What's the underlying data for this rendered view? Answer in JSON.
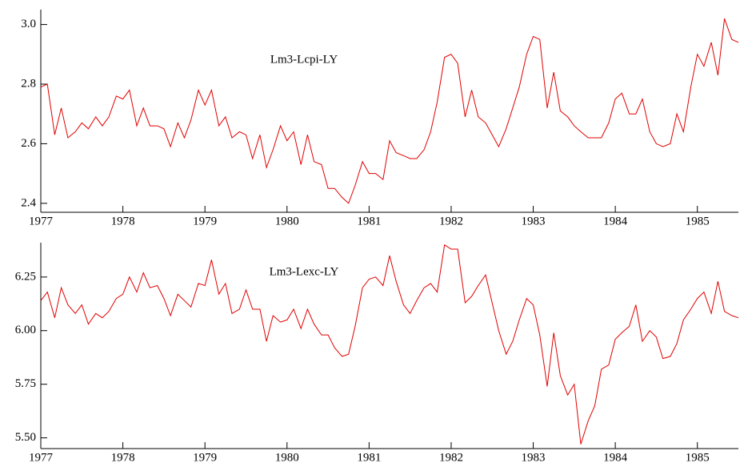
{
  "chart_data": [
    {
      "type": "line",
      "x": [
        1977,
        1977.08,
        1977.17,
        1977.25,
        1977.33,
        1977.42,
        1977.5,
        1977.58,
        1977.67,
        1977.75,
        1977.83,
        1977.92,
        1978,
        1978.08,
        1978.17,
        1978.25,
        1978.33,
        1978.42,
        1978.5,
        1978.58,
        1978.67,
        1978.75,
        1978.83,
        1978.92,
        1979,
        1979.08,
        1979.17,
        1979.25,
        1979.33,
        1979.42,
        1979.5,
        1979.58,
        1979.67,
        1979.75,
        1979.83,
        1979.92,
        1980,
        1980.08,
        1980.17,
        1980.25,
        1980.33,
        1980.42,
        1980.5,
        1980.58,
        1980.67,
        1980.75,
        1980.83,
        1980.92,
        1981,
        1981.08,
        1981.17,
        1981.25,
        1981.33,
        1981.42,
        1981.5,
        1981.58,
        1981.67,
        1981.75,
        1981.83,
        1981.92,
        1982,
        1982.08,
        1982.17,
        1982.25,
        1982.33,
        1982.42,
        1982.5,
        1982.58,
        1982.67,
        1982.75,
        1982.83,
        1982.92,
        1983,
        1983.08,
        1983.17,
        1983.25,
        1983.33,
        1983.42,
        1983.5,
        1983.58,
        1983.67,
        1983.75,
        1983.83,
        1983.92,
        1984,
        1984.08,
        1984.17,
        1984.25,
        1984.33,
        1984.42,
        1984.5,
        1984.58,
        1984.67,
        1984.75,
        1984.83,
        1984.92,
        1985,
        1985.08,
        1985.17,
        1985.25,
        1985.33,
        1985.42,
        1985.5
      ],
      "series": [
        {
          "name": "Lm3-Lcpi-LY",
          "color": "#e00000",
          "values": [
            2.79,
            2.8,
            2.63,
            2.72,
            2.62,
            2.64,
            2.67,
            2.65,
            2.69,
            2.66,
            2.69,
            2.76,
            2.75,
            2.78,
            2.66,
            2.72,
            2.66,
            2.66,
            2.65,
            2.59,
            2.67,
            2.62,
            2.68,
            2.78,
            2.73,
            2.78,
            2.66,
            2.69,
            2.62,
            2.64,
            2.63,
            2.55,
            2.63,
            2.52,
            2.58,
            2.66,
            2.61,
            2.64,
            2.53,
            2.63,
            2.54,
            2.53,
            2.45,
            2.45,
            2.42,
            2.4,
            2.46,
            2.54,
            2.5,
            2.5,
            2.48,
            2.61,
            2.57,
            2.56,
            2.55,
            2.55,
            2.58,
            2.64,
            2.74,
            2.89,
            2.9,
            2.87,
            2.69,
            2.78,
            2.69,
            2.67,
            2.63,
            2.59,
            2.65,
            2.72,
            2.79,
            2.9,
            2.96,
            2.95,
            2.72,
            2.84,
            2.71,
            2.69,
            2.66,
            2.64,
            2.62,
            2.62,
            2.62,
            2.67,
            2.75,
            2.77,
            2.7,
            2.7,
            2.75,
            2.64,
            2.6,
            2.59,
            2.6,
            2.7,
            2.64,
            2.79,
            2.9,
            2.86,
            2.94,
            2.83,
            3.02,
            2.95,
            2.94
          ]
        }
      ],
      "xlim": [
        1977,
        1985.5
      ],
      "xticks": [
        1977,
        1978,
        1979,
        1980,
        1981,
        1982,
        1983,
        1984,
        1985
      ],
      "ylim": [
        2.37,
        3.05
      ],
      "yticks": [
        2.4,
        2.6,
        2.8,
        {
          "value": 3,
          "label": "3.0"
        }
      ]
    },
    {
      "type": "line",
      "x": [
        1977,
        1977.08,
        1977.17,
        1977.25,
        1977.33,
        1977.42,
        1977.5,
        1977.58,
        1977.67,
        1977.75,
        1977.83,
        1977.92,
        1978,
        1978.08,
        1978.17,
        1978.25,
        1978.33,
        1978.42,
        1978.5,
        1978.58,
        1978.67,
        1978.75,
        1978.83,
        1978.92,
        1979,
        1979.08,
        1979.17,
        1979.25,
        1979.33,
        1979.42,
        1979.5,
        1979.58,
        1979.67,
        1979.75,
        1979.83,
        1979.92,
        1980,
        1980.08,
        1980.17,
        1980.25,
        1980.33,
        1980.42,
        1980.5,
        1980.58,
        1980.67,
        1980.75,
        1980.83,
        1980.92,
        1981,
        1981.08,
        1981.17,
        1981.25,
        1981.33,
        1981.42,
        1981.5,
        1981.58,
        1981.67,
        1981.75,
        1981.83,
        1981.92,
        1982,
        1982.08,
        1982.17,
        1982.25,
        1982.33,
        1982.42,
        1982.5,
        1982.58,
        1982.67,
        1982.75,
        1982.83,
        1982.92,
        1983,
        1983.08,
        1983.17,
        1983.25,
        1983.33,
        1983.42,
        1983.5,
        1983.58,
        1983.67,
        1983.75,
        1983.83,
        1983.92,
        1984,
        1984.08,
        1984.17,
        1984.25,
        1984.33,
        1984.42,
        1984.5,
        1984.58,
        1984.67,
        1984.75,
        1984.83,
        1984.92,
        1985,
        1985.08,
        1985.17,
        1985.25,
        1985.33,
        1985.42,
        1985.5
      ],
      "series": [
        {
          "name": "Lm3-Lexc-LY",
          "color": "#e00000",
          "values": [
            6.14,
            6.18,
            6.06,
            6.2,
            6.12,
            6.08,
            6.12,
            6.03,
            6.08,
            6.06,
            6.09,
            6.15,
            6.17,
            6.25,
            6.18,
            6.27,
            6.2,
            6.21,
            6.15,
            6.07,
            6.17,
            6.14,
            6.11,
            6.22,
            6.21,
            6.33,
            6.17,
            6.22,
            6.08,
            6.1,
            6.19,
            6.1,
            6.1,
            5.95,
            6.07,
            6.04,
            6.05,
            6.1,
            6.01,
            6.1,
            6.03,
            5.98,
            5.98,
            5.92,
            5.88,
            5.89,
            6.02,
            6.2,
            6.24,
            6.25,
            6.21,
            6.35,
            6.23,
            6.12,
            6.08,
            6.14,
            6.2,
            6.22,
            6.18,
            6.4,
            6.38,
            6.38,
            6.13,
            6.16,
            6.21,
            6.26,
            6.13,
            6.0,
            5.89,
            5.95,
            6.05,
            6.15,
            6.12,
            5.98,
            5.74,
            5.99,
            5.79,
            5.7,
            5.75,
            5.47,
            5.58,
            5.65,
            5.82,
            5.84,
            5.96,
            5.99,
            6.02,
            6.12,
            5.95,
            6.0,
            5.97,
            5.87,
            5.88,
            5.94,
            6.05,
            6.1,
            6.15,
            6.18,
            6.08,
            6.23,
            6.09,
            6.07,
            6.06
          ]
        }
      ],
      "xlim": [
        1977,
        1985.5
      ],
      "xticks": [
        1977,
        1978,
        1979,
        1980,
        1981,
        1982,
        1983,
        1984,
        1985
      ],
      "ylim": [
        5.45,
        6.41
      ],
      "yticks": [
        {
          "value": 5.5,
          "label": "5.50"
        },
        5.75,
        {
          "value": 6,
          "label": "6.00"
        },
        6.25
      ]
    }
  ]
}
